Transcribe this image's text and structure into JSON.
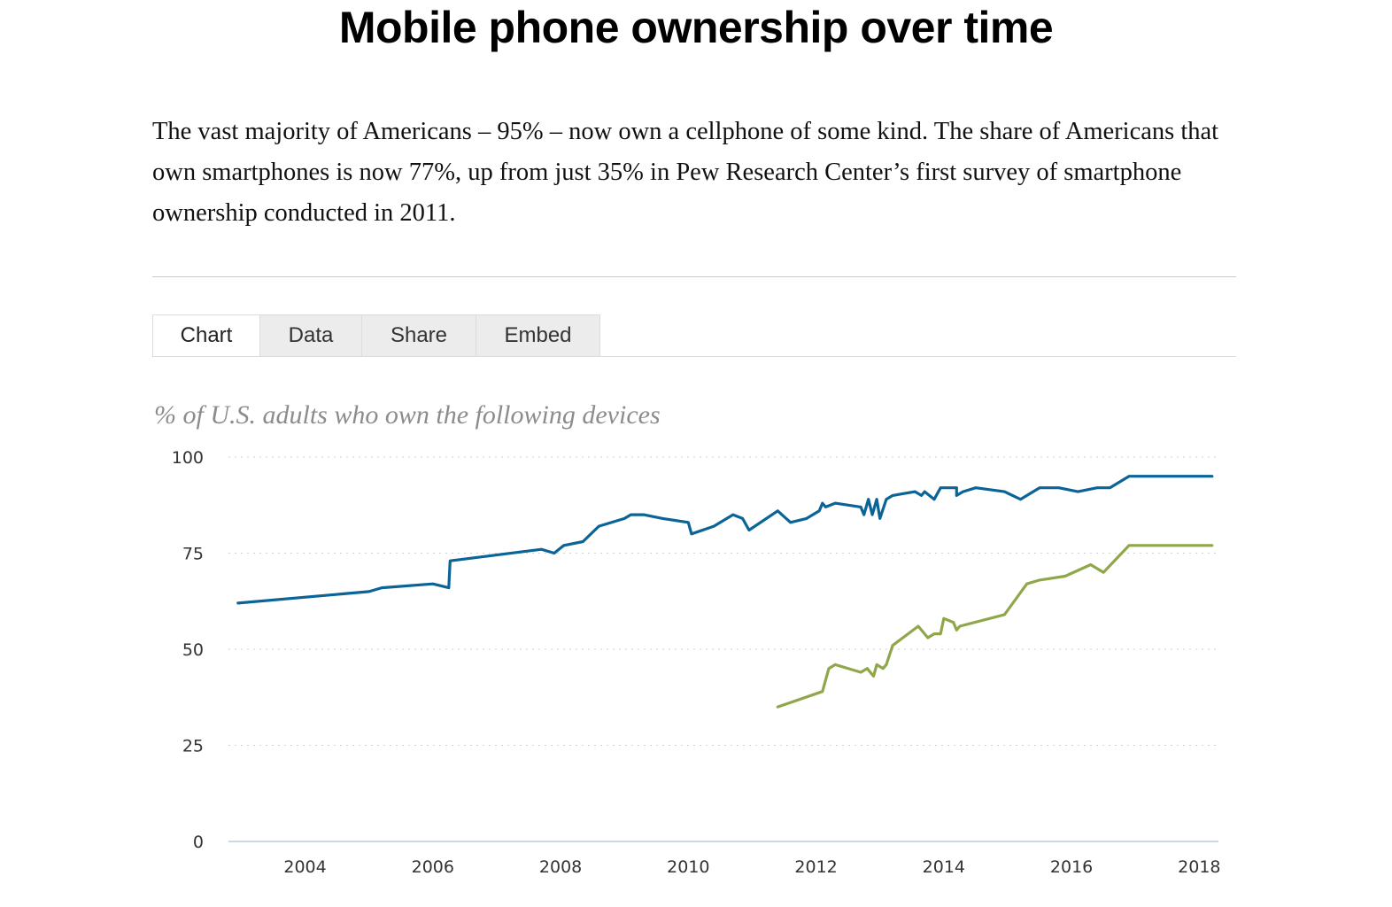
{
  "page": {
    "title": "Mobile phone ownership over time",
    "intro": "The vast majority of Americans – 95% – now own a cellphone of some kind. The share of Americans that own smartphones is now 77%, up from just 35% in Pew Research Center’s first survey of smartphone ownership conducted in 2011."
  },
  "tabs": [
    {
      "label": "Chart",
      "active": true
    },
    {
      "label": "Data",
      "active": false
    },
    {
      "label": "Share",
      "active": false
    },
    {
      "label": "Embed",
      "active": false
    }
  ],
  "chart_data": {
    "type": "line",
    "subtitle": "% of U.S. adults who own the following devices",
    "ylim": [
      0,
      100
    ],
    "yticks": [
      0,
      25,
      50,
      75,
      100
    ],
    "xlim": [
      2002.8,
      2018.3
    ],
    "xticks": [
      2004,
      2006,
      2008,
      2010,
      2012,
      2014,
      2016,
      2018
    ],
    "grid": "horizontal dotted",
    "legend": "none",
    "series": [
      {
        "color": "#0b6497",
        "x": [
          2002.95,
          2005.0,
          2005.2,
          2006.0,
          2006.25,
          2006.27,
          2007.7,
          2007.9,
          2008.05,
          2008.35,
          2008.6,
          2009.0,
          2009.1,
          2009.3,
          2009.6,
          2010.0,
          2010.05,
          2010.4,
          2010.7,
          2010.85,
          2010.95,
          2011.4,
          2011.6,
          2011.85,
          2012.05,
          2012.1,
          2012.15,
          2012.3,
          2012.7,
          2012.75,
          2012.82,
          2012.88,
          2012.95,
          2013.0,
          2013.1,
          2013.2,
          2013.55,
          2013.65,
          2013.7,
          2013.85,
          2013.95,
          2014.05,
          2014.2,
          2014.2,
          2014.3,
          2014.5,
          2014.95,
          2015.2,
          2015.5,
          2015.8,
          2016.1,
          2016.4,
          2016.6,
          2016.9,
          2018.2
        ],
        "y": [
          62,
          65,
          66,
          67,
          66,
          73,
          76,
          75,
          77,
          78,
          82,
          84,
          85,
          85,
          84,
          83,
          80,
          82,
          85,
          84,
          81,
          86,
          83,
          84,
          86,
          88,
          87,
          88,
          87,
          85,
          89,
          85,
          89,
          84,
          89,
          90,
          91,
          90,
          91,
          89,
          92,
          92,
          92,
          90,
          91,
          92,
          91,
          89,
          92,
          92,
          91,
          92,
          92,
          95,
          95
        ]
      },
      {
        "color": "#8fa74a",
        "x": [
          2011.4,
          2012.1,
          2012.2,
          2012.3,
          2012.7,
          2012.8,
          2012.9,
          2012.95,
          2013.05,
          2013.1,
          2013.2,
          2013.6,
          2013.75,
          2013.85,
          2013.95,
          2014.0,
          2014.15,
          2014.2,
          2014.25,
          2014.95,
          2015.3,
          2015.5,
          2015.9,
          2016.3,
          2016.5,
          2016.9,
          2018.2
        ],
        "y": [
          35,
          39,
          45,
          46,
          44,
          45,
          43,
          46,
          45,
          46,
          51,
          56,
          53,
          54,
          54,
          58,
          57,
          55,
          56,
          59,
          67,
          68,
          69,
          72,
          70,
          77,
          77
        ]
      }
    ]
  }
}
